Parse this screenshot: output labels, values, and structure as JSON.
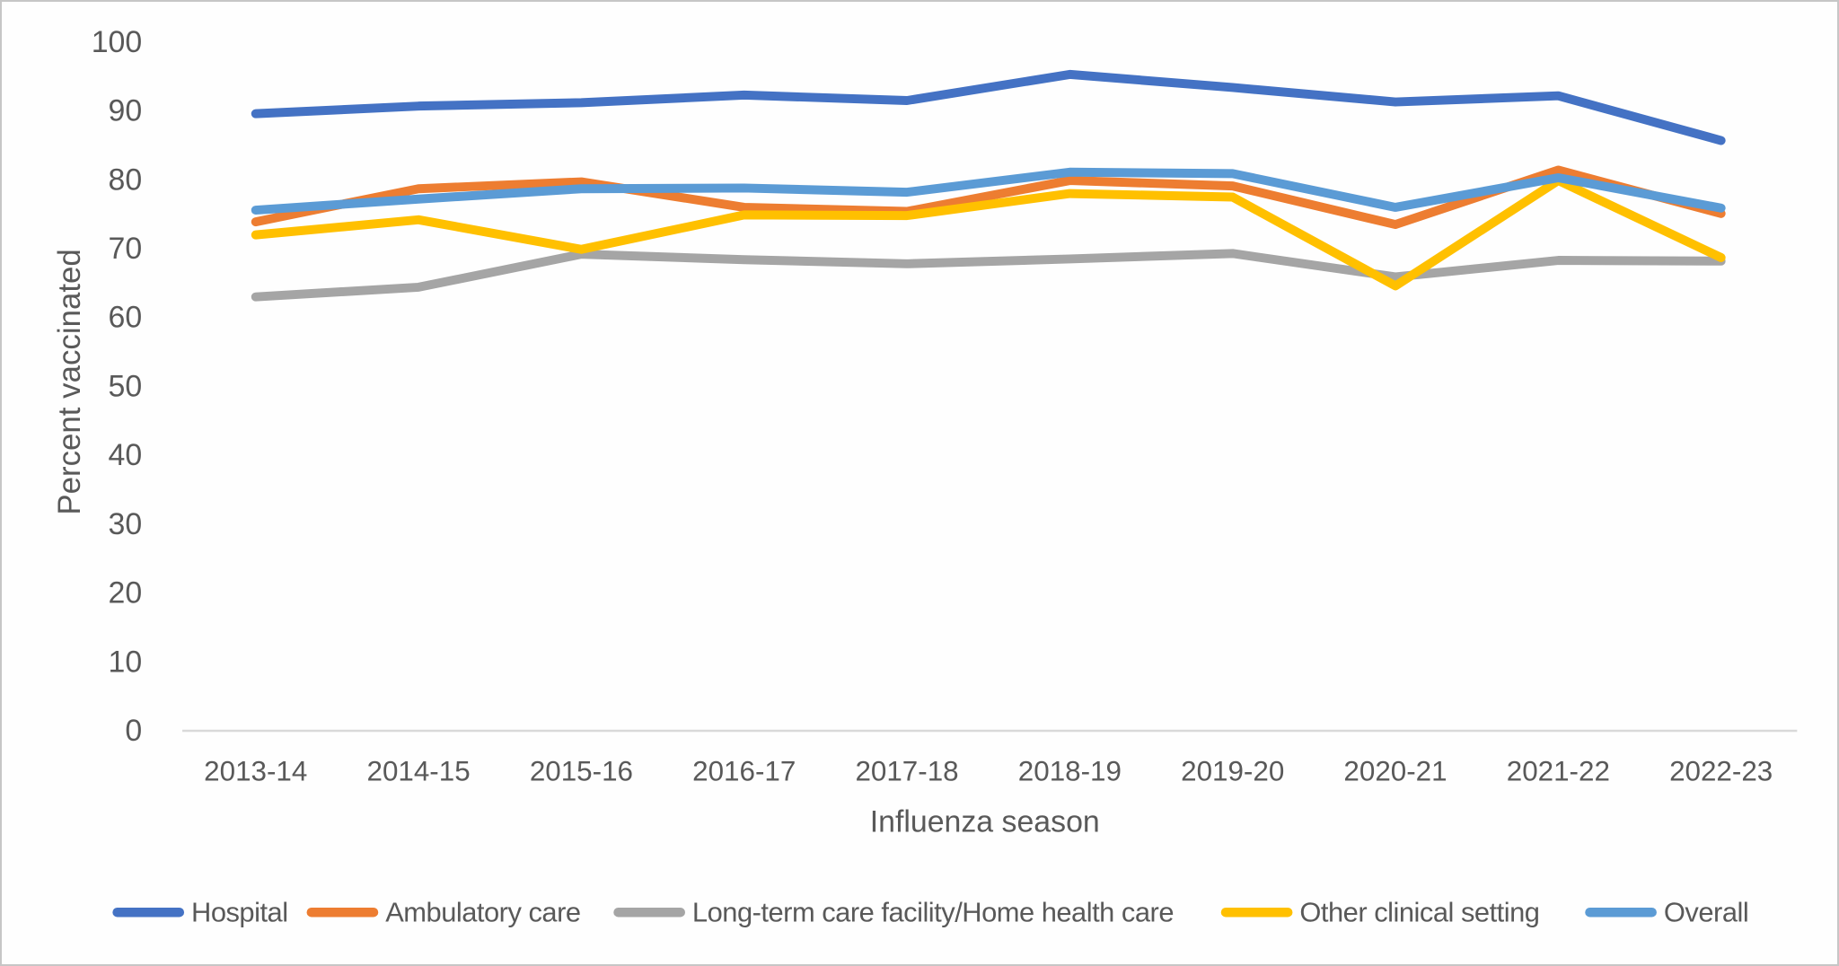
{
  "chart_data": {
    "type": "line",
    "title": "",
    "xlabel": "Influenza season",
    "ylabel": "Percent vaccinated",
    "ylim": [
      0,
      100
    ],
    "ytick_interval": 10,
    "yticks": [
      0,
      10,
      20,
      30,
      40,
      50,
      60,
      70,
      80,
      90,
      100
    ],
    "grid": false,
    "legend_position": "bottom",
    "categories": [
      "2013-14",
      "2014-15",
      "2015-16",
      "2016-17",
      "2017-18",
      "2018-19",
      "2019-20",
      "2020-21",
      "2021-22",
      "2022-23"
    ],
    "series": [
      {
        "name": "Hospital",
        "color": "#4472C4",
        "values": [
          89.6,
          90.7,
          91.2,
          92.3,
          91.5,
          95.3,
          93.4,
          91.3,
          92.2,
          85.7
        ]
      },
      {
        "name": "Ambulatory care",
        "color": "#ED7D31",
        "values": [
          73.9,
          78.7,
          79.7,
          76.0,
          75.4,
          79.9,
          79.1,
          73.5,
          81.4,
          75.1
        ]
      },
      {
        "name": "Long-term care facility/Home health care",
        "color": "#A5A5A5",
        "values": [
          63.0,
          64.4,
          69.2,
          68.4,
          67.8,
          68.5,
          69.3,
          65.9,
          68.3,
          68.2
        ]
      },
      {
        "name": "Other clinical setting",
        "color": "#FFC000",
        "values": [
          72.0,
          74.2,
          69.9,
          74.9,
          74.8,
          78.0,
          77.5,
          64.6,
          79.9,
          68.7
        ]
      },
      {
        "name": "Overall",
        "color": "#5B9BD5",
        "values": [
          75.6,
          77.2,
          78.7,
          78.8,
          78.2,
          81.1,
          80.9,
          76.0,
          80.3,
          75.9
        ]
      }
    ]
  },
  "colors": {
    "axis_text": "#595959",
    "axis_line": "#D9D9D9",
    "background": "#FEFEFE",
    "border": "#C6C6C6"
  }
}
